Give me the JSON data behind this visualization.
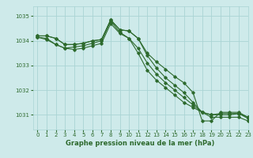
{
  "xlabel": "Graphe pression niveau de la mer (hPa)",
  "xlim": [
    -0.5,
    23
  ],
  "ylim": [
    1030.4,
    1035.4
  ],
  "yticks": [
    1031,
    1032,
    1033,
    1034,
    1035
  ],
  "xticks": [
    0,
    1,
    2,
    3,
    4,
    5,
    6,
    7,
    8,
    9,
    10,
    11,
    12,
    13,
    14,
    15,
    16,
    17,
    18,
    19,
    20,
    21,
    22,
    23
  ],
  "bg_color": "#ceeaea",
  "grid_color": "#aad4d4",
  "line_color": "#2d6a2d",
  "series": [
    [
      1034.2,
      1034.2,
      1034.1,
      1033.85,
      1033.85,
      1033.9,
      1034.0,
      1034.05,
      1034.85,
      1034.45,
      1034.4,
      1034.1,
      1033.5,
      1033.15,
      1032.85,
      1032.55,
      1032.3,
      1031.9,
      1030.75,
      1030.75,
      1031.1,
      1031.1,
      1031.1,
      1030.9
    ],
    [
      1034.2,
      1034.2,
      1034.1,
      1033.85,
      1033.85,
      1033.9,
      1034.0,
      1034.05,
      1034.85,
      1034.45,
      1034.4,
      1034.1,
      1033.4,
      1032.9,
      1032.5,
      1032.2,
      1031.9,
      1031.5,
      1031.1,
      1031.0,
      1031.0,
      1031.0,
      1031.05,
      1030.9
    ],
    [
      1034.15,
      1034.1,
      1033.85,
      1033.7,
      1033.75,
      1033.8,
      1033.9,
      1034.0,
      1034.8,
      1034.35,
      1034.1,
      1033.7,
      1033.1,
      1032.65,
      1032.3,
      1032.0,
      1031.7,
      1031.4,
      1031.1,
      1031.0,
      1031.05,
      1031.05,
      1031.05,
      1030.85
    ],
    [
      1034.15,
      1034.05,
      1033.85,
      1033.7,
      1033.65,
      1033.7,
      1033.8,
      1033.9,
      1034.7,
      1034.3,
      1034.1,
      1033.5,
      1032.8,
      1032.4,
      1032.1,
      1031.8,
      1031.5,
      1031.3,
      1031.1,
      1030.9,
      1030.9,
      1030.9,
      1030.9,
      1030.75
    ]
  ]
}
